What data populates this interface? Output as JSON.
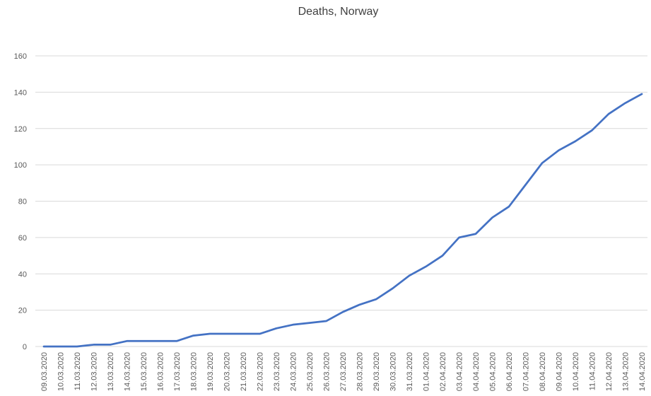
{
  "chart_data": {
    "type": "line",
    "title": "Deaths, Norway",
    "xlabel": "",
    "ylabel": "",
    "ylim": [
      0,
      160
    ],
    "yticks": [
      0,
      20,
      40,
      60,
      80,
      100,
      120,
      140,
      160
    ],
    "grid": true,
    "legend": "none",
    "line_color": "#4472C4",
    "grid_color": "#D9D9D9",
    "categories": [
      "09.03.2020",
      "10.03.2020",
      "11.03.2020",
      "12.03.2020",
      "13.03.2020",
      "14.03.2020",
      "15.03.2020",
      "16.03.2020",
      "17.03.2020",
      "18.03.2020",
      "19.03.2020",
      "20.03.2020",
      "21.03.2020",
      "22.03.2020",
      "23.03.2020",
      "24.03.2020",
      "25.03.2020",
      "26.03.2020",
      "27.03.2020",
      "28.03.2020",
      "29.03.2020",
      "30.03.2020",
      "31.03.2020",
      "01.04.2020",
      "02.04.2020",
      "03.04.2020",
      "04.04.2020",
      "05.04.2020",
      "06.04.2020",
      "07.04.2020",
      "08.04.2020",
      "09.04.2020",
      "10.04.2020",
      "11.04.2020",
      "12.04.2020",
      "13.04.2020",
      "14.04.2020"
    ],
    "series": [
      {
        "values": [
          0,
          0,
          0,
          1,
          1,
          3,
          3,
          3,
          3,
          6,
          7,
          7,
          7,
          7,
          10,
          12,
          13,
          14,
          19,
          23,
          26,
          32,
          39,
          44,
          50,
          60,
          62,
          71,
          77,
          89,
          101,
          108,
          113,
          119,
          128,
          134,
          139
        ]
      }
    ]
  }
}
